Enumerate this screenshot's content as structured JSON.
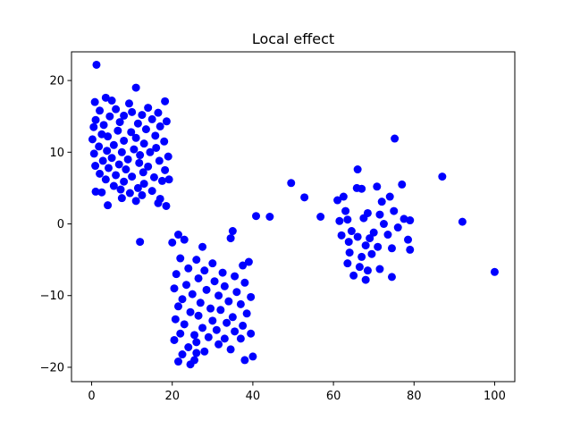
{
  "chart_data": {
    "type": "scatter",
    "title": "Local effect",
    "xlabel": "",
    "ylabel": "",
    "xlim": [
      -5,
      105
    ],
    "ylim": [
      -22,
      24
    ],
    "xticks": [
      0,
      20,
      40,
      60,
      80,
      100
    ],
    "yticks": [
      -20,
      -10,
      0,
      10,
      20
    ],
    "grid": false,
    "marker_color": "#0000ff",
    "series": [
      {
        "values": [
          [
            1.2,
            22.2
          ],
          [
            11.0,
            19.0
          ],
          [
            3.5,
            17.6
          ],
          [
            0.8,
            17.0
          ],
          [
            5.0,
            17.2
          ],
          [
            18.2,
            17.1
          ],
          [
            9.3,
            16.8
          ],
          [
            14.0,
            16.2
          ],
          [
            6.0,
            16.0
          ],
          [
            2.0,
            15.8
          ],
          [
            10.0,
            15.6
          ],
          [
            16.5,
            15.5
          ],
          [
            12.5,
            15.2
          ],
          [
            4.5,
            15.0
          ],
          [
            8.0,
            15.1
          ],
          [
            1.0,
            14.5
          ],
          [
            18.6,
            14.3
          ],
          [
            15.0,
            14.6
          ],
          [
            7.0,
            14.2
          ],
          [
            11.5,
            14.0
          ],
          [
            3.0,
            13.8
          ],
          [
            0.5,
            13.5
          ],
          [
            17.0,
            13.6
          ],
          [
            13.5,
            13.2
          ],
          [
            6.5,
            13.0
          ],
          [
            9.8,
            12.8
          ],
          [
            2.5,
            12.5
          ],
          [
            15.8,
            12.3
          ],
          [
            4.0,
            12.2
          ],
          [
            11.0,
            12.0
          ],
          [
            0.2,
            11.8
          ],
          [
            18.0,
            11.5
          ],
          [
            8.0,
            11.6
          ],
          [
            13.0,
            11.2
          ],
          [
            5.5,
            11.0
          ],
          [
            1.8,
            10.8
          ],
          [
            16.0,
            10.6
          ],
          [
            10.5,
            10.4
          ],
          [
            3.8,
            10.2
          ],
          [
            7.5,
            10.0
          ],
          [
            14.5,
            10.0
          ],
          [
            0.6,
            9.8
          ],
          [
            12.0,
            9.6
          ],
          [
            19.0,
            9.4
          ],
          [
            5.0,
            9.2
          ],
          [
            9.0,
            9.0
          ],
          [
            2.8,
            8.8
          ],
          [
            16.8,
            8.8
          ],
          [
            11.8,
            8.5
          ],
          [
            6.8,
            8.3
          ],
          [
            0.9,
            8.1
          ],
          [
            14.0,
            8.0
          ],
          [
            4.2,
            7.8
          ],
          [
            8.5,
            7.6
          ],
          [
            18.2,
            7.5
          ],
          [
            12.8,
            7.2
          ],
          [
            2.0,
            7.0
          ],
          [
            6.0,
            6.8
          ],
          [
            10.0,
            6.6
          ],
          [
            15.5,
            6.5
          ],
          [
            3.5,
            6.2
          ],
          [
            17.5,
            6.0
          ],
          [
            8.0,
            5.9
          ],
          [
            13.0,
            5.6
          ],
          [
            5.5,
            5.3
          ],
          [
            11.5,
            5.0
          ],
          [
            19.2,
            6.2
          ],
          [
            7.2,
            4.8
          ],
          [
            15.0,
            4.6
          ],
          [
            1.0,
            4.5
          ],
          [
            2.5,
            4.4
          ],
          [
            9.5,
            4.3
          ],
          [
            12.5,
            4.0
          ],
          [
            17.0,
            3.5
          ],
          [
            7.5,
            3.6
          ],
          [
            11.0,
            3.2
          ],
          [
            4.0,
            2.6
          ],
          [
            16.5,
            2.9
          ],
          [
            18.5,
            2.5
          ],
          [
            12.0,
            -2.5
          ],
          [
            40.8,
            1.1
          ],
          [
            44.2,
            1.0
          ],
          [
            21.5,
            -1.5
          ],
          [
            20.0,
            -2.6
          ],
          [
            23.0,
            -2.2
          ],
          [
            27.5,
            -3.2
          ],
          [
            35.0,
            -1.0
          ],
          [
            34.5,
            -2.0
          ],
          [
            22.0,
            -4.8
          ],
          [
            26.0,
            -5.0
          ],
          [
            30.0,
            -5.5
          ],
          [
            37.5,
            -5.8
          ],
          [
            39.0,
            -5.3
          ],
          [
            24.0,
            -6.2
          ],
          [
            28.0,
            -6.5
          ],
          [
            32.5,
            -6.8
          ],
          [
            21.0,
            -7.0
          ],
          [
            35.5,
            -7.3
          ],
          [
            26.5,
            -7.6
          ],
          [
            30.5,
            -8.0
          ],
          [
            38.0,
            -8.2
          ],
          [
            23.5,
            -8.5
          ],
          [
            33.0,
            -8.7
          ],
          [
            20.5,
            -9.0
          ],
          [
            28.5,
            -9.2
          ],
          [
            36.0,
            -9.5
          ],
          [
            25.0,
            -9.8
          ],
          [
            31.5,
            -10.0
          ],
          [
            39.5,
            -10.2
          ],
          [
            22.5,
            -10.5
          ],
          [
            34.0,
            -10.8
          ],
          [
            27.0,
            -11.0
          ],
          [
            37.0,
            -11.2
          ],
          [
            21.5,
            -11.5
          ],
          [
            29.5,
            -11.8
          ],
          [
            32.0,
            -12.0
          ],
          [
            24.5,
            -12.3
          ],
          [
            38.5,
            -12.5
          ],
          [
            26.5,
            -12.8
          ],
          [
            35.0,
            -13.0
          ],
          [
            20.8,
            -13.3
          ],
          [
            30.0,
            -13.5
          ],
          [
            33.5,
            -13.8
          ],
          [
            23.0,
            -14.0
          ],
          [
            37.5,
            -14.2
          ],
          [
            27.5,
            -14.5
          ],
          [
            31.0,
            -14.8
          ],
          [
            35.5,
            -15.0
          ],
          [
            22.0,
            -15.3
          ],
          [
            25.5,
            -15.5
          ],
          [
            39.5,
            -15.3
          ],
          [
            29.0,
            -15.8
          ],
          [
            33.0,
            -16.0
          ],
          [
            20.5,
            -16.2
          ],
          [
            37.0,
            -16.0
          ],
          [
            26.0,
            -16.5
          ],
          [
            31.5,
            -16.8
          ],
          [
            24.0,
            -17.2
          ],
          [
            34.5,
            -17.5
          ],
          [
            28.0,
            -17.8
          ],
          [
            22.5,
            -18.2
          ],
          [
            40.0,
            -18.5
          ],
          [
            25.5,
            -19.0
          ],
          [
            24.5,
            -19.6
          ],
          [
            21.5,
            -19.2
          ],
          [
            38.0,
            -19.0
          ],
          [
            26.0,
            -18.0
          ],
          [
            49.5,
            5.7
          ],
          [
            52.8,
            3.7
          ],
          [
            56.8,
            1.0
          ],
          [
            75.2,
            11.9
          ],
          [
            87.0,
            6.6
          ],
          [
            92.0,
            0.3
          ],
          [
            100.0,
            -6.7
          ],
          [
            66.0,
            7.6
          ],
          [
            65.8,
            5.0
          ],
          [
            67.0,
            4.9
          ],
          [
            70.8,
            5.2
          ],
          [
            77.0,
            5.5
          ],
          [
            62.5,
            3.8
          ],
          [
            61.0,
            3.3
          ],
          [
            74.0,
            3.8
          ],
          [
            72.0,
            3.1
          ],
          [
            63.0,
            1.8
          ],
          [
            68.5,
            1.5
          ],
          [
            71.5,
            1.3
          ],
          [
            75.0,
            1.8
          ],
          [
            77.5,
            0.7
          ],
          [
            79.0,
            0.5
          ],
          [
            61.5,
            0.4
          ],
          [
            63.5,
            0.6
          ],
          [
            67.5,
            0.8
          ],
          [
            72.5,
            0.0
          ],
          [
            76.0,
            -0.5
          ],
          [
            64.5,
            -1.0
          ],
          [
            70.0,
            -1.2
          ],
          [
            73.5,
            -1.5
          ],
          [
            62.0,
            -1.6
          ],
          [
            66.0,
            -1.8
          ],
          [
            69.0,
            -2.0
          ],
          [
            78.5,
            -2.2
          ],
          [
            63.8,
            -2.5
          ],
          [
            68.0,
            -3.0
          ],
          [
            71.0,
            -3.2
          ],
          [
            74.5,
            -3.4
          ],
          [
            79.0,
            -3.6
          ],
          [
            64.0,
            -4.0
          ],
          [
            69.5,
            -4.2
          ],
          [
            67.0,
            -4.6
          ],
          [
            63.5,
            -5.5
          ],
          [
            66.5,
            -6.0
          ],
          [
            71.5,
            -6.3
          ],
          [
            68.5,
            -6.5
          ],
          [
            65.0,
            -7.2
          ],
          [
            74.5,
            -7.4
          ],
          [
            68.0,
            -7.8
          ]
        ]
      }
    ]
  }
}
